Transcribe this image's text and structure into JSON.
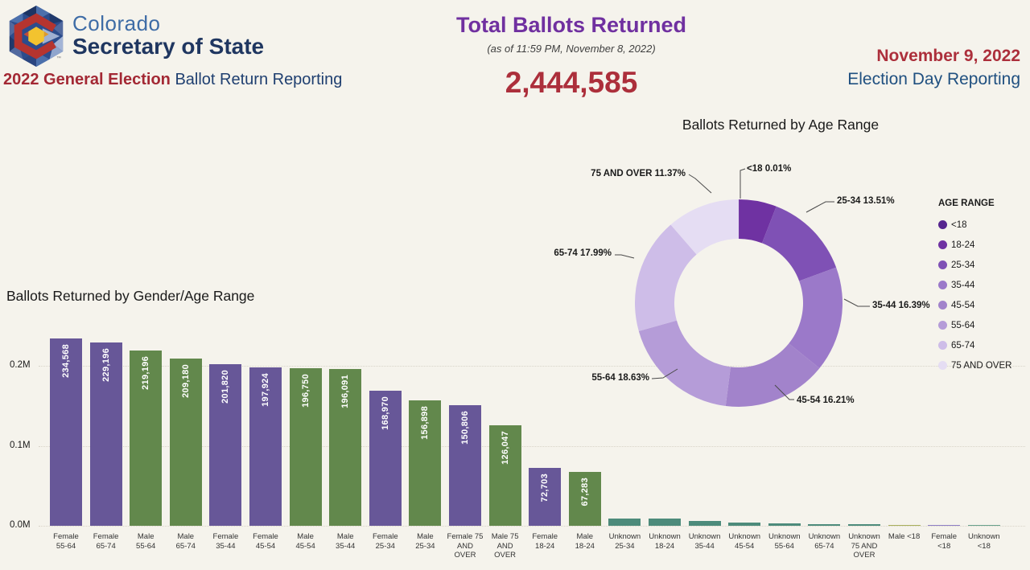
{
  "header": {
    "brand_line1": "Colorado",
    "brand_line2": "Secretary of State",
    "trademark": "™",
    "subtitle_red": "2022 General Election",
    "subtitle_blue": " Ballot Return Reporting",
    "center_title": "Total Ballots Returned",
    "center_subtitle": "(as of 11:59 PM, November 8, 2022)",
    "total_ballots": "2,444,585",
    "right_date": "November 9, 2022",
    "right_subtitle": "Election Day Reporting"
  },
  "colors": {
    "page_bg": "#F5F3EC",
    "female_bar": "#675798",
    "male_bar": "#62884C",
    "unknown_bar": "#4D8B7B",
    "accent_red": "#AC2F3B",
    "accent_purple": "#7030A0",
    "accent_navy": "#1F3660"
  },
  "chart_data": [
    {
      "type": "pie",
      "donut": true,
      "title": "Ballots Returned by Age Range",
      "legend_title": "AGE RANGE",
      "legend_position": "right",
      "note": "18-24 share not labeled on chart; value inferred so total = 100%",
      "segments": [
        {
          "label": "<18",
          "pct": 0.01,
          "color": "#56258F",
          "callout": "<18 0.01%"
        },
        {
          "label": "18-24",
          "pct": 5.89,
          "color": "#6F32A2",
          "callout": null
        },
        {
          "label": "25-34",
          "pct": 13.51,
          "color": "#7F51B5",
          "callout": "25-34 13.51%"
        },
        {
          "label": "35-44",
          "pct": 16.39,
          "color": "#9B79C9",
          "callout": "35-44 16.39%"
        },
        {
          "label": "45-54",
          "pct": 16.21,
          "color": "#A283CB",
          "callout": "45-54 16.21%"
        },
        {
          "label": "55-64",
          "pct": 18.63,
          "color": "#B59CD8",
          "callout": "55-64 18.63%"
        },
        {
          "label": "65-74",
          "pct": 17.99,
          "color": "#CEBDE8",
          "callout": "65-74 17.99%"
        },
        {
          "label": "75 AND OVER",
          "pct": 11.37,
          "color": "#E5DDF3",
          "callout": "75 AND OVER 11.37%"
        }
      ]
    },
    {
      "type": "bar",
      "title": "Ballots Returned by Gender/Age Range",
      "ylim": [
        0,
        240000
      ],
      "yticks": [
        "0.0M",
        "0.1M",
        "0.2M"
      ],
      "grid": "dotted horizontal",
      "note": "bars without printed value labels are visually estimated",
      "bars": [
        {
          "category_lines": [
            "Female",
            "55-64"
          ],
          "value": 234568,
          "value_label": "234,568",
          "color": "#675798"
        },
        {
          "category_lines": [
            "Female",
            "65-74"
          ],
          "value": 229196,
          "value_label": "229,196",
          "color": "#675798"
        },
        {
          "category_lines": [
            "Male",
            "55-64"
          ],
          "value": 219196,
          "value_label": "219,196",
          "color": "#62884C"
        },
        {
          "category_lines": [
            "Male",
            "65-74"
          ],
          "value": 209180,
          "value_label": "209,180",
          "color": "#62884C"
        },
        {
          "category_lines": [
            "Female",
            "35-44"
          ],
          "value": 201820,
          "value_label": "201,820",
          "color": "#675798"
        },
        {
          "category_lines": [
            "Female",
            "45-54"
          ],
          "value": 197924,
          "value_label": "197,924",
          "color": "#675798"
        },
        {
          "category_lines": [
            "Male",
            "45-54"
          ],
          "value": 196750,
          "value_label": "196,750",
          "color": "#62884C"
        },
        {
          "category_lines": [
            "Male",
            "35-44"
          ],
          "value": 196091,
          "value_label": "196,091",
          "color": "#62884C"
        },
        {
          "category_lines": [
            "Female",
            "25-34"
          ],
          "value": 168970,
          "value_label": "168,970",
          "color": "#675798"
        },
        {
          "category_lines": [
            "Male",
            "25-34"
          ],
          "value": 156898,
          "value_label": "156,898",
          "color": "#62884C"
        },
        {
          "category_lines": [
            "Female 75",
            "AND",
            "OVER"
          ],
          "value": 150806,
          "value_label": "150,806",
          "color": "#675798"
        },
        {
          "category_lines": [
            "Male 75",
            "AND",
            "OVER"
          ],
          "value": 126047,
          "value_label": "126,047",
          "color": "#62884C"
        },
        {
          "category_lines": [
            "Female",
            "18-24"
          ],
          "value": 72703,
          "value_label": "72,703",
          "color": "#675798"
        },
        {
          "category_lines": [
            "Male",
            "18-24"
          ],
          "value": 67283,
          "value_label": "67,283",
          "color": "#62884C"
        },
        {
          "category_lines": [
            "Unknown",
            "25-34"
          ],
          "value": 9000,
          "value_label": null,
          "color": "#4D8B7B"
        },
        {
          "category_lines": [
            "Unknown",
            "18-24"
          ],
          "value": 8800,
          "value_label": null,
          "color": "#4D8B7B"
        },
        {
          "category_lines": [
            "Unknown",
            "35-44"
          ],
          "value": 6000,
          "value_label": null,
          "color": "#4D8B7B"
        },
        {
          "category_lines": [
            "Unknown",
            "45-54"
          ],
          "value": 4200,
          "value_label": null,
          "color": "#4D8B7B"
        },
        {
          "category_lines": [
            "Unknown",
            "55-64"
          ],
          "value": 3200,
          "value_label": null,
          "color": "#4D8B7B"
        },
        {
          "category_lines": [
            "Unknown",
            "65-74"
          ],
          "value": 2400,
          "value_label": null,
          "color": "#4D8B7B"
        },
        {
          "category_lines": [
            "Unknown",
            "75 AND",
            "OVER"
          ],
          "value": 2000,
          "value_label": null,
          "color": "#4D8B7B"
        },
        {
          "category_lines": [
            "Male <18"
          ],
          "value": 1200,
          "value_label": null,
          "color": "#A9AF5C"
        },
        {
          "category_lines": [
            "Female",
            "<18"
          ],
          "value": 1100,
          "value_label": null,
          "color": "#8E7EC6"
        },
        {
          "category_lines": [
            "Unknown",
            "<18"
          ],
          "value": 900,
          "value_label": null,
          "color": "#68A18C"
        }
      ]
    }
  ]
}
